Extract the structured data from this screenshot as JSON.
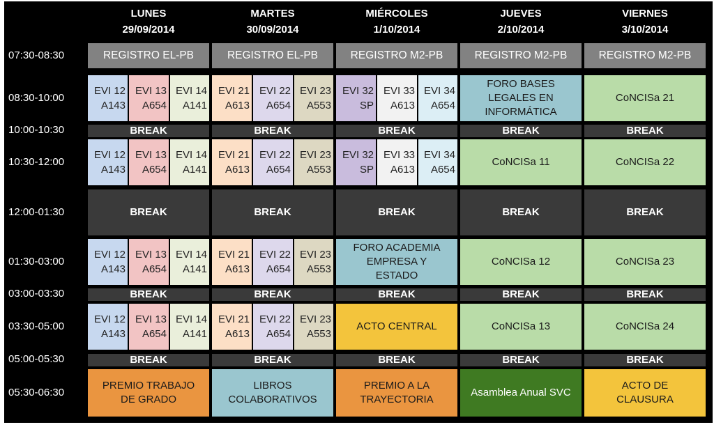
{
  "days": [
    {
      "name": "LUNES",
      "date": "29/09/2014"
    },
    {
      "name": "MARTES",
      "date": "30/09/2014"
    },
    {
      "name": "MIÉRCOLES",
      "date": "1/10/2014"
    },
    {
      "name": "JUEVES",
      "date": "2/10/2014"
    },
    {
      "name": "VIERNES",
      "date": "3/10/2014"
    }
  ],
  "times": [
    "07:30-08:30",
    "08:30-10:00",
    "10:00-10:30",
    "10:30-12:00",
    "12:00-01:30",
    "01:30-03:00",
    "03:00-03:30",
    "03:30-05:00",
    "05:00-05:30",
    "05:30-06:30"
  ],
  "registro": [
    "REGISTRO EL-PB",
    "REGISTRO EL-PB",
    "REGISTRO M2-PB",
    "REGISTRO M2-PB",
    "REGISTRO M2-PB"
  ],
  "break_label": "BREAK",
  "evi": {
    "lunes": [
      {
        "code": "EVI 12",
        "room": "A143"
      },
      {
        "code": "EVI 13",
        "room": "A654"
      },
      {
        "code": "EVI 14",
        "room": "A141"
      }
    ],
    "martes": [
      {
        "code": "EVI 21",
        "room": "A613"
      },
      {
        "code": "EVI 22",
        "room": "A654"
      },
      {
        "code": "EVI 23",
        "room": "A553"
      }
    ],
    "miercoles": [
      {
        "code": "EVI 32",
        "room": "SP"
      },
      {
        "code": "EVI 33",
        "room": "A613"
      },
      {
        "code": "EVI 34",
        "room": "A654"
      }
    ]
  },
  "events": {
    "foro_bases": "FORO BASES LEGALES EN INFORMÁTICA",
    "foro_academia": "FORO ACADEMIA EMPRESA Y ESTADO",
    "acto_central": "ACTO CENTRAL",
    "jueves_sessions": [
      "CoNCISa 11",
      "CoNCISa 12",
      "CoNCISa 13"
    ],
    "viernes_sessions": [
      "CoNCISa 21",
      "CoNCISa 22",
      "CoNCISa 23",
      "CoNCISa 24"
    ],
    "closing": [
      "PREMIO TRABAJO DE GRADO",
      "LIBROS COLABORATIVOS",
      "PREMIO A LA TRAYECTORIA",
      "Asamblea Anual SVC",
      "ACTO DE CLAUSURA"
    ]
  },
  "colors": {
    "background": "#000000",
    "registro": "#828282",
    "break": "#3a3a3a",
    "concisa": "#b9dca8",
    "foro": "#9ac6cf",
    "orange": "#ea9540",
    "yellow": "#f3c43c",
    "asamblea": "#3f7a22"
  }
}
